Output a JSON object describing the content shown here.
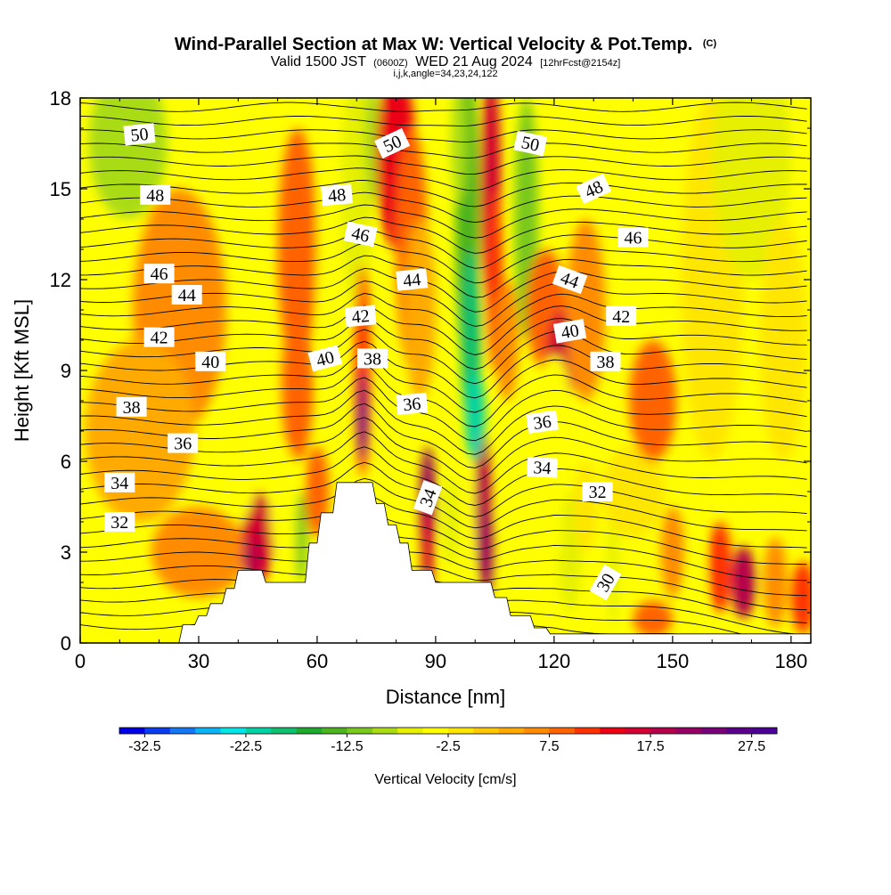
{
  "chart_data": {
    "type": "heatmap",
    "title": "Wind-Parallel Section at Max W: Vertical Velocity & Pot.Temp.",
    "copyright": "(C)",
    "subtitle_main": "Valid 1500 JST",
    "subtitle_utc": "(0600Z)",
    "subtitle_date": "WED 21 Aug 2024",
    "subtitle_fcst": "[12hrFcst@2154z]",
    "subtitle_indices": "i,j,k,angle=34,23,24,122",
    "xlabel": "Distance [nm]",
    "ylabel": "Height [Kft MSL]",
    "xlim": [
      0,
      185
    ],
    "ylim": [
      0,
      18
    ],
    "x_ticks": [
      0,
      30,
      60,
      90,
      120,
      150,
      180
    ],
    "x_tick_labels": [
      "0",
      "30",
      "60",
      "90",
      "120",
      "150",
      "180"
    ],
    "y_ticks": [
      0,
      3,
      6,
      9,
      12,
      15,
      18
    ],
    "y_tick_labels": [
      "0",
      "3",
      "6",
      "9",
      "12",
      "15",
      "18"
    ],
    "colorbar": {
      "title": "Vertical Velocity [cm/s]",
      "min": -35,
      "max": 30,
      "step": 2.5,
      "tick_values": [
        -32.5,
        -22.5,
        -12.5,
        -2.5,
        7.5,
        17.5,
        27.5
      ],
      "tick_labels": [
        "-32.5",
        "-22.5",
        "-12.5",
        "-2.5",
        "7.5",
        "17.5",
        "27.5"
      ],
      "colors": [
        "#0000e6",
        "#0a3cf0",
        "#1478f5",
        "#0ab4f5",
        "#00e6e6",
        "#00d2a5",
        "#0fbe6e",
        "#1eaa2d",
        "#4bb41e",
        "#78c81e",
        "#aadc14",
        "#e6f000",
        "#ffff00",
        "#ffe600",
        "#ffc800",
        "#ffaa00",
        "#ff8c00",
        "#ff6400",
        "#ff3200",
        "#eb0014",
        "#d20032",
        "#b4004b",
        "#960064",
        "#780078",
        "#5a008c",
        "#4b0096"
      ]
    },
    "terrain": [
      [
        0,
        0
      ],
      [
        25,
        0
      ],
      [
        26,
        0.6
      ],
      [
        29,
        0.6
      ],
      [
        30,
        0.9
      ],
      [
        32,
        0.9
      ],
      [
        33,
        1.3
      ],
      [
        36,
        1.3
      ],
      [
        37,
        1.8
      ],
      [
        39,
        1.8
      ],
      [
        40,
        2.4
      ],
      [
        46,
        2.4
      ],
      [
        47,
        2.0
      ],
      [
        57,
        2.0
      ],
      [
        58,
        3.3
      ],
      [
        60,
        3.3
      ],
      [
        61,
        4.3
      ],
      [
        64,
        4.3
      ],
      [
        65,
        5.3
      ],
      [
        74,
        5.3
      ],
      [
        75,
        4.6
      ],
      [
        77,
        4.6
      ],
      [
        78,
        3.9
      ],
      [
        80,
        3.9
      ],
      [
        81,
        3.3
      ],
      [
        83,
        3.3
      ],
      [
        84,
        2.4
      ],
      [
        89,
        2.4
      ],
      [
        90,
        2.0
      ],
      [
        104,
        2.0
      ],
      [
        105,
        1.5
      ],
      [
        108,
        1.5
      ],
      [
        109,
        0.9
      ],
      [
        114,
        0.9
      ],
      [
        115,
        0.5
      ],
      [
        118,
        0.5
      ],
      [
        119,
        0.3
      ],
      [
        185,
        0.3
      ]
    ],
    "theta_contours": {
      "label_values": [
        50,
        50,
        50,
        48,
        48,
        48,
        46,
        46,
        46,
        44,
        44,
        44,
        42,
        42,
        42,
        40,
        40,
        40,
        38,
        38,
        38,
        36,
        36,
        36,
        34,
        34,
        34,
        32,
        32,
        30
      ],
      "label_positions": [
        [
          15,
          16.8
        ],
        [
          79,
          16.5
        ],
        [
          114,
          16.5
        ],
        [
          19,
          14.8
        ],
        [
          65,
          14.8
        ],
        [
          130,
          15.0
        ],
        [
          71,
          13.5
        ],
        [
          140,
          13.4
        ],
        [
          20,
          12.2
        ],
        [
          84,
          12.0
        ],
        [
          124,
          12.0
        ],
        [
          27,
          11.5
        ],
        [
          71,
          10.8
        ],
        [
          137,
          10.8
        ],
        [
          20,
          10.1
        ],
        [
          124,
          10.3
        ],
        [
          33,
          9.3
        ],
        [
          62,
          9.4
        ],
        [
          74,
          9.4
        ],
        [
          133,
          9.3
        ],
        [
          13,
          7.8
        ],
        [
          84,
          7.9
        ],
        [
          117,
          7.3
        ],
        [
          26,
          6.6
        ],
        [
          117,
          5.8
        ],
        [
          10,
          5.3
        ],
        [
          88,
          4.8
        ],
        [
          131,
          5.0
        ],
        [
          10,
          4.0
        ],
        [
          133,
          2.0
        ]
      ],
      "label_rotation": [
        -6,
        -25,
        12,
        0,
        -5,
        -25,
        12,
        0,
        0,
        -6,
        20,
        0,
        -5,
        0,
        0,
        -10,
        0,
        -15,
        0,
        0,
        0,
        -5,
        -8,
        0,
        3,
        0,
        -70,
        0,
        0,
        -60
      ]
    }
  }
}
